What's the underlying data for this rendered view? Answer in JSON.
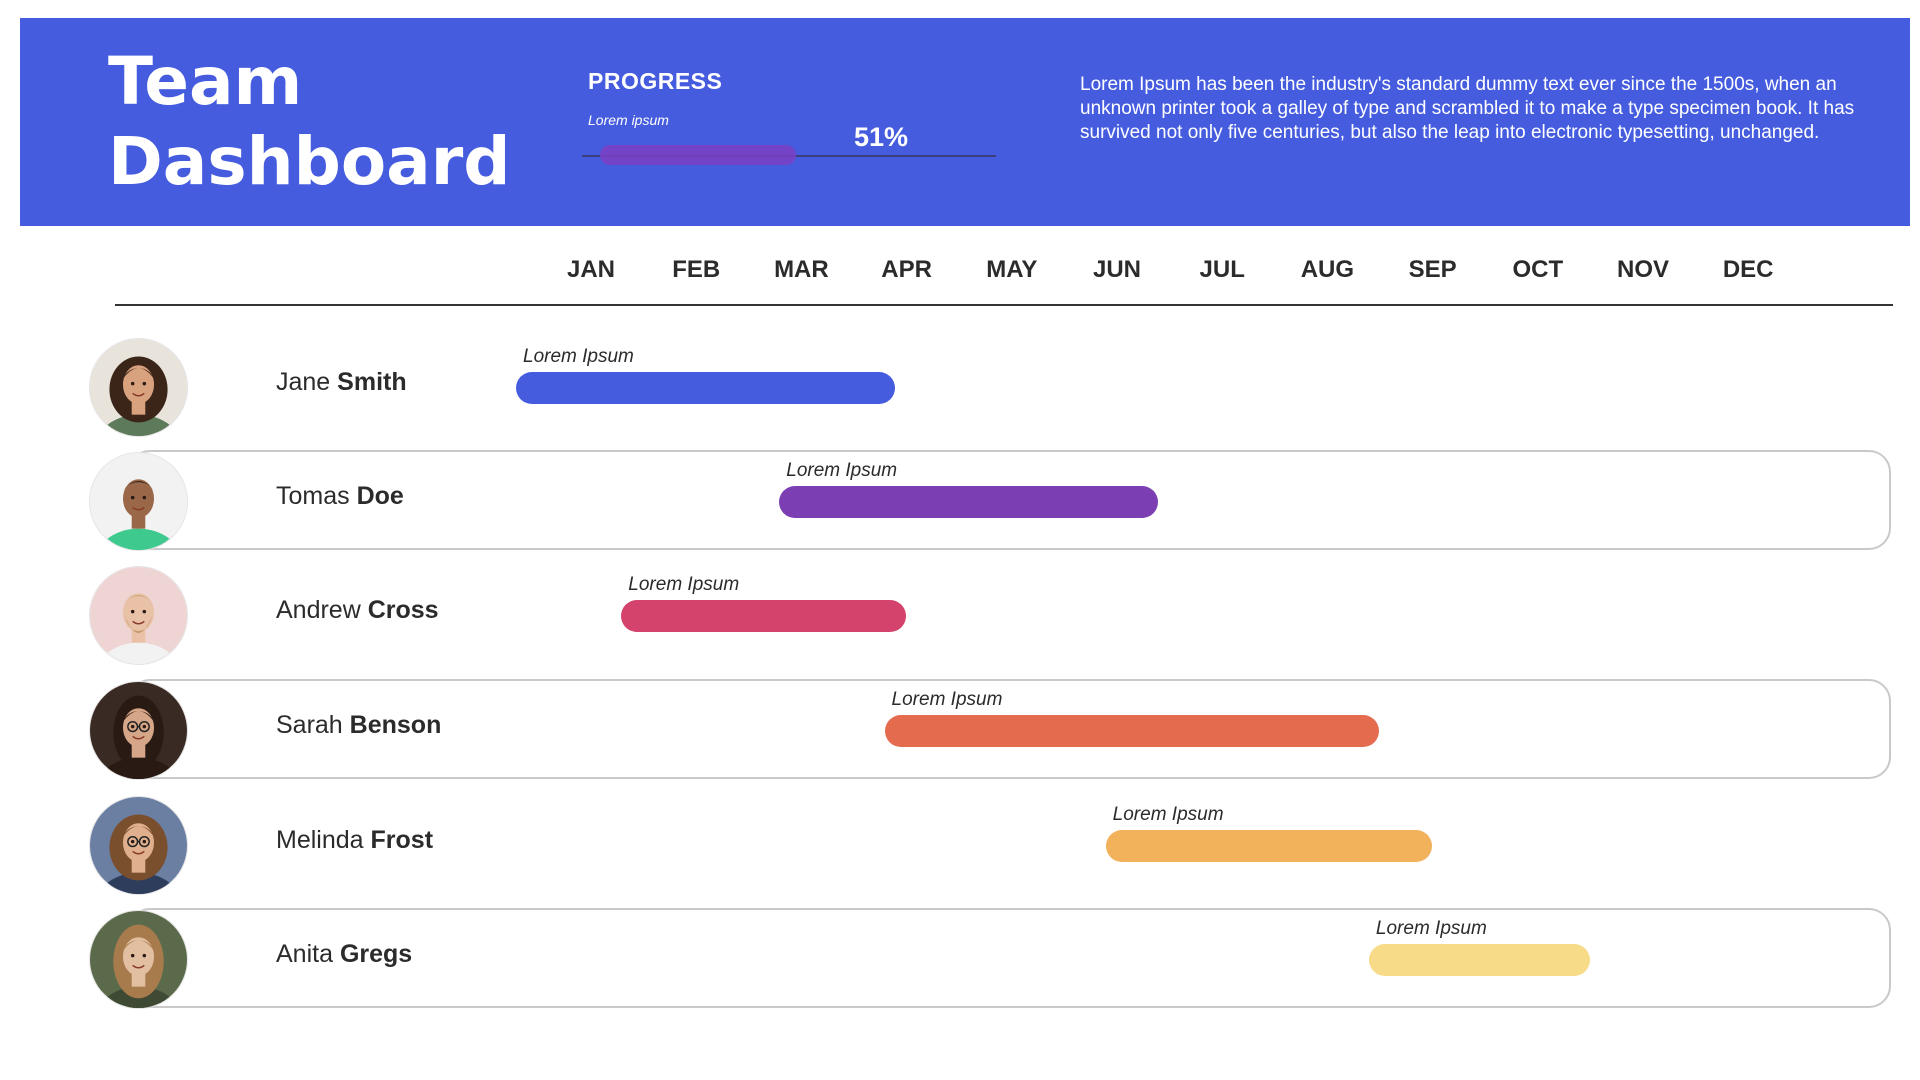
{
  "header": {
    "title_line1": "Team",
    "title_line2": "Dashboard",
    "progress_label": "PROGRESS",
    "progress_sub": "Lorem ipsum",
    "progress_value_text": "51%",
    "progress_value": 0.51,
    "description": "Lorem Ipsum has been the industry's standard dummy text ever since the 1500s, when an unknown printer took a galley of type and scrambled it to make a type specimen book. It has survived not only five centuries, but also the leap into electronic typesetting, unchanged.",
    "background_color": "#455cdf"
  },
  "months": [
    "JAN",
    "FEB",
    "MAR",
    "APR",
    "MAY",
    "JUN",
    "JUL",
    "AUG",
    "SEP",
    "OCT",
    "NOV",
    "DEC"
  ],
  "rows": [
    {
      "first": "Jane",
      "last": "Smith",
      "task_label": "Lorem Ipsum",
      "start_month": 0.0,
      "end_month": 3.6,
      "color": "#455cdf",
      "avatar_icon": "woman-curly-hair-avatar"
    },
    {
      "first": "Tomas",
      "last": "Doe",
      "task_label": "Lorem Ipsum",
      "start_month": 2.5,
      "end_month": 6.1,
      "color": "#7b3fb3",
      "avatar_icon": "man-green-shirt-avatar"
    },
    {
      "first": "Andrew",
      "last": "Cross",
      "task_label": "Lorem Ipsum",
      "start_month": 1.0,
      "end_month": 3.7,
      "color": "#d4436c",
      "avatar_icon": "man-beard-avatar"
    },
    {
      "first": "Sarah",
      "last": "Benson",
      "task_label": "Lorem Ipsum",
      "start_month": 3.5,
      "end_month": 8.2,
      "color": "#e46b4d",
      "avatar_icon": "woman-glasses-avatar"
    },
    {
      "first": "Melinda",
      "last": "Frost",
      "task_label": "Lorem Ipsum",
      "start_month": 5.6,
      "end_month": 8.7,
      "color": "#f2b25c",
      "avatar_icon": "woman-glasses-smiling-avatar"
    },
    {
      "first": "Anita",
      "last": "Gregs",
      "task_label": "Lorem Ipsum",
      "start_month": 8.1,
      "end_month": 10.2,
      "color": "#f8db88",
      "avatar_icon": "woman-long-hair-avatar"
    }
  ]
}
